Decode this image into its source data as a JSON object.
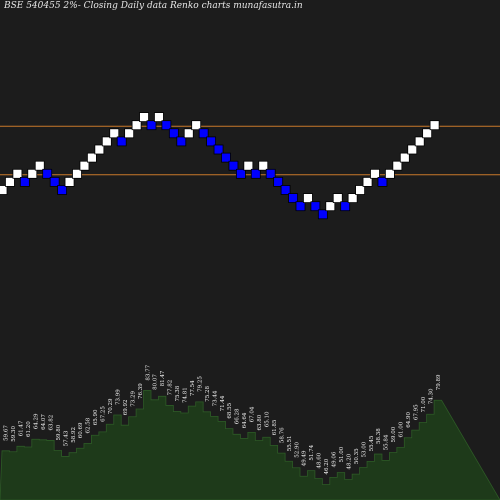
{
  "title": "BSE 540455 2%-  Closing Daily data  Renko  charts munafasutra.in",
  "colors": {
    "background": "#1c1c1c",
    "up_brick": "#ffffff",
    "down_brick": "#0000ff",
    "brick_outline": "#000000",
    "level_line": "#c8782a",
    "volume_fill": "#1e3a1a",
    "volume_edge": "#2d5a26"
  },
  "chart_data": [
    {
      "type": "renko",
      "title": "BSE 540455 2%-  Closing Daily data  Renko  charts munafasutra.in",
      "box_percent": 2,
      "level_lines": [
        2,
        8
      ],
      "bricks": [
        {
          "level": 0,
          "dir": "up"
        },
        {
          "level": 1,
          "dir": "up"
        },
        {
          "level": 2,
          "dir": "up"
        },
        {
          "level": 1,
          "dir": "down"
        },
        {
          "level": 2,
          "dir": "up"
        },
        {
          "level": 3,
          "dir": "up"
        },
        {
          "level": 2,
          "dir": "down"
        },
        {
          "level": 1,
          "dir": "down"
        },
        {
          "level": 0,
          "dir": "down"
        },
        {
          "level": 1,
          "dir": "up"
        },
        {
          "level": 2,
          "dir": "up"
        },
        {
          "level": 3,
          "dir": "up"
        },
        {
          "level": 4,
          "dir": "up"
        },
        {
          "level": 5,
          "dir": "up"
        },
        {
          "level": 6,
          "dir": "up"
        },
        {
          "level": 7,
          "dir": "up"
        },
        {
          "level": 6,
          "dir": "down"
        },
        {
          "level": 7,
          "dir": "up"
        },
        {
          "level": 8,
          "dir": "up"
        },
        {
          "level": 9,
          "dir": "up"
        },
        {
          "level": 8,
          "dir": "down"
        },
        {
          "level": 9,
          "dir": "up"
        },
        {
          "level": 8,
          "dir": "down"
        },
        {
          "level": 7,
          "dir": "down"
        },
        {
          "level": 6,
          "dir": "down"
        },
        {
          "level": 7,
          "dir": "up"
        },
        {
          "level": 8,
          "dir": "up"
        },
        {
          "level": 7,
          "dir": "down"
        },
        {
          "level": 6,
          "dir": "down"
        },
        {
          "level": 5,
          "dir": "down"
        },
        {
          "level": 4,
          "dir": "down"
        },
        {
          "level": 3,
          "dir": "down"
        },
        {
          "level": 2,
          "dir": "down"
        },
        {
          "level": 3,
          "dir": "up"
        },
        {
          "level": 2,
          "dir": "down"
        },
        {
          "level": 3,
          "dir": "up"
        },
        {
          "level": 2,
          "dir": "down"
        },
        {
          "level": 1,
          "dir": "down"
        },
        {
          "level": 0,
          "dir": "down"
        },
        {
          "level": -1,
          "dir": "down"
        },
        {
          "level": -2,
          "dir": "down"
        },
        {
          "level": -1,
          "dir": "up"
        },
        {
          "level": -2,
          "dir": "down"
        },
        {
          "level": -3,
          "dir": "down"
        },
        {
          "level": -2,
          "dir": "up"
        },
        {
          "level": -1,
          "dir": "up"
        },
        {
          "level": -2,
          "dir": "down"
        },
        {
          "level": -1,
          "dir": "up"
        },
        {
          "level": 0,
          "dir": "up"
        },
        {
          "level": 1,
          "dir": "up"
        },
        {
          "level": 2,
          "dir": "up"
        },
        {
          "level": 1,
          "dir": "down"
        },
        {
          "level": 2,
          "dir": "up"
        },
        {
          "level": 3,
          "dir": "up"
        },
        {
          "level": 4,
          "dir": "up"
        },
        {
          "level": 5,
          "dir": "up"
        },
        {
          "level": 6,
          "dir": "up"
        },
        {
          "level": 7,
          "dir": "up"
        },
        {
          "level": 8,
          "dir": "up"
        }
      ]
    },
    {
      "type": "area",
      "series_role": "brick closing values",
      "labels": [
        "59.67",
        "59.30",
        "61.47",
        "61.20",
        "64.29",
        "64.07",
        "63.82",
        "59.80",
        "57.43",
        "58.92",
        "60.69",
        "62.58",
        "65.90",
        "67.25",
        "70.29",
        "73.99",
        "69.92",
        "73.29",
        "76.39",
        "83.77",
        "80.07",
        "81.47",
        "77.82",
        "75.38",
        "74.81",
        "77.54",
        "79.25",
        "75.28",
        "73.44",
        "71.44",
        "68.55",
        "66.28",
        "64.64",
        "67.04",
        "63.80",
        "65.10",
        "61.85",
        "58.76",
        "55.51",
        "52.90",
        "49.49",
        "51.74",
        "48.60",
        "46.20",
        "49.06",
        "51.00",
        "48.20",
        "50.35",
        "53.00",
        "55.45",
        "58.38",
        "55.84",
        "59.00",
        "61.00",
        "64.90",
        "67.95",
        "71.00",
        "74.30",
        "79.89"
      ]
    }
  ]
}
